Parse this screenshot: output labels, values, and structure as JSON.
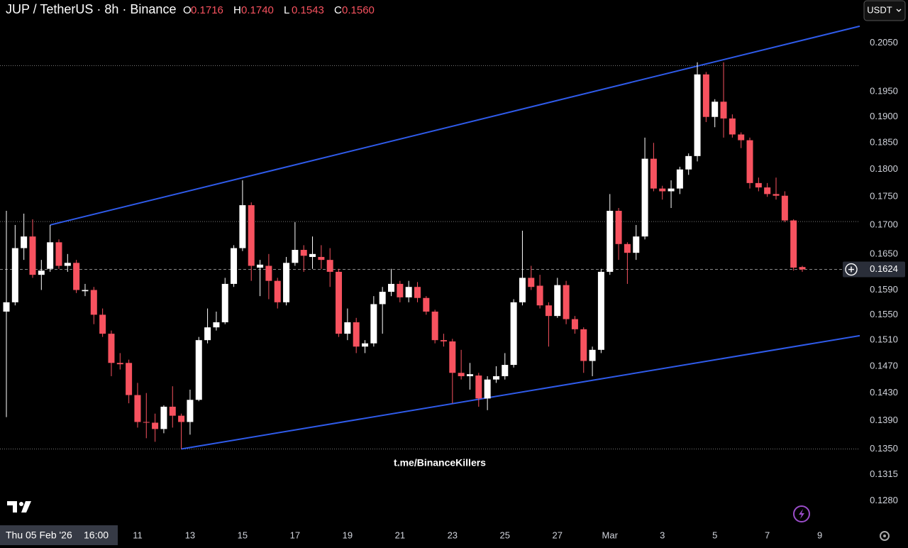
{
  "chart_data": {
    "type": "candlestick",
    "title": "JUP / TetherUS · 8h · Binance",
    "ohlc_legend": [
      {
        "label": "O",
        "value": "0.1716"
      },
      {
        "label": "H",
        "value": "0.1740"
      },
      {
        "label": "L",
        "value": "0.1543"
      },
      {
        "label": "C",
        "value": "0.1560"
      }
    ],
    "currency": "USDT",
    "watermark": "t.me/BinanceKillers",
    "crosshair_date": "Thu 05 Feb '26",
    "crosshair_time": "16:00",
    "log_scale": true,
    "up_color": "#ffffff",
    "down_color": "#f7525f",
    "line_color": "#2f5bea",
    "open": [
      0.1555,
      0.157,
      0.166,
      0.168,
      0.1615,
      0.1625,
      0.167,
      0.163,
      0.1635,
      0.1588,
      0.159,
      0.155,
      0.152,
      0.1475,
      0.1475,
      0.1427,
      0.1388,
      0.1387,
      0.1378,
      0.141,
      0.1397,
      0.1388,
      0.142,
      0.151,
      0.153,
      0.1538,
      0.16,
      0.166,
      0.1735,
      0.1627,
      0.163,
      0.1605,
      0.157,
      0.1635,
      0.1657,
      0.1645,
      0.1645,
      0.164,
      0.162,
      0.152,
      0.1538,
      0.15,
      0.1505,
      0.1567,
      0.1587,
      0.16,
      0.1578,
      0.1595,
      0.1577,
      0.1555,
      0.151,
      0.1508,
      0.146,
      0.1455,
      0.1456,
      0.1422,
      0.145,
      0.1455,
      0.1472,
      0.157,
      0.161,
      0.1597,
      0.1565,
      0.1548,
      0.1598,
      0.1543,
      0.1527,
      0.1478,
      0.1495,
      0.162,
      0.1725,
      0.1667,
      0.1652,
      0.168,
      0.182,
      0.1765,
      0.176,
      0.1765,
      0.18,
      0.1825,
      0.1985,
      0.19,
      0.193,
      0.1897,
      0.1866,
      0.1855,
      0.1775,
      0.1767,
      0.1755,
      0.1752,
      0.1708,
      0.1628
    ],
    "high": [
      0.1725,
      0.17,
      0.172,
      0.171,
      0.164,
      0.17,
      0.1675,
      0.165,
      0.164,
      0.16,
      0.1595,
      0.156,
      0.1525,
      0.149,
      0.148,
      0.1445,
      0.143,
      0.14,
      0.1412,
      0.144,
      0.14,
      0.1435,
      0.1515,
      0.156,
      0.1555,
      0.161,
      0.1665,
      0.178,
      0.174,
      0.164,
      0.165,
      0.161,
      0.1645,
      0.1705,
      0.1665,
      0.168,
      0.1665,
      0.166,
      0.1625,
      0.156,
      0.1545,
      0.151,
      0.158,
      0.1595,
      0.1625,
      0.1605,
      0.1605,
      0.1603,
      0.158,
      0.1558,
      0.152,
      0.1512,
      0.1495,
      0.1475,
      0.146,
      0.1455,
      0.147,
      0.149,
      0.1575,
      0.169,
      0.163,
      0.1615,
      0.157,
      0.161,
      0.1605,
      0.1548,
      0.153,
      0.15,
      0.1625,
      0.1755,
      0.173,
      0.167,
      0.17,
      0.186,
      0.185,
      0.177,
      0.178,
      0.1805,
      0.183,
      0.201,
      0.199,
      0.1935,
      0.201,
      0.1905,
      0.187,
      0.186,
      0.1785,
      0.1775,
      0.1785,
      0.176,
      0.171,
      0.163
    ],
    "low": [
      0.1395,
      0.1565,
      0.164,
      0.161,
      0.159,
      0.162,
      0.1625,
      0.162,
      0.1585,
      0.158,
      0.1535,
      0.1515,
      0.1455,
      0.1465,
      0.1415,
      0.138,
      0.1365,
      0.136,
      0.1372,
      0.138,
      0.135,
      0.137,
      0.1418,
      0.1505,
      0.1525,
      0.1535,
      0.1595,
      0.1655,
      0.1605,
      0.158,
      0.1575,
      0.156,
      0.1565,
      0.163,
      0.162,
      0.1625,
      0.1625,
      0.1595,
      0.1515,
      0.151,
      0.149,
      0.149,
      0.15,
      0.152,
      0.158,
      0.157,
      0.157,
      0.157,
      0.155,
      0.1505,
      0.15,
      0.1415,
      0.145,
      0.1435,
      0.141,
      0.1405,
      0.1445,
      0.145,
      0.1468,
      0.1565,
      0.159,
      0.156,
      0.15,
      0.1545,
      0.1535,
      0.152,
      0.146,
      0.1455,
      0.149,
      0.1615,
      0.164,
      0.16,
      0.164,
      0.1675,
      0.176,
      0.1745,
      0.173,
      0.1755,
      0.179,
      0.1815,
      0.189,
      0.188,
      0.186,
      0.186,
      0.184,
      0.1765,
      0.176,
      0.175,
      0.1745,
      0.1705,
      0.1622,
      0.162
    ],
    "close": [
      0.157,
      0.166,
      0.168,
      0.1615,
      0.1622,
      0.167,
      0.163,
      0.1635,
      0.159,
      0.159,
      0.155,
      0.152,
      0.1475,
      0.1473,
      0.1427,
      0.1388,
      0.1387,
      0.1378,
      0.141,
      0.1397,
      0.1388,
      0.142,
      0.151,
      0.153,
      0.1538,
      0.16,
      0.166,
      0.1735,
      0.163,
      0.1632,
      0.1605,
      0.157,
      0.1635,
      0.1657,
      0.1647,
      0.165,
      0.164,
      0.162,
      0.152,
      0.1538,
      0.15,
      0.1505,
      0.1567,
      0.1587,
      0.16,
      0.1578,
      0.1595,
      0.1577,
      0.1555,
      0.151,
      0.1508,
      0.146,
      0.1455,
      0.1458,
      0.1422,
      0.145,
      0.1455,
      0.1472,
      0.157,
      0.161,
      0.1595,
      0.1565,
      0.1548,
      0.1598,
      0.1543,
      0.1527,
      0.1478,
      0.1495,
      0.162,
      0.1725,
      0.1667,
      0.1652,
      0.168,
      0.182,
      0.1765,
      0.176,
      0.1765,
      0.18,
      0.1825,
      0.1985,
      0.19,
      0.193,
      0.1897,
      0.1866,
      0.1855,
      0.1775,
      0.1767,
      0.1755,
      0.1752,
      0.1708,
      0.1627,
      0.1624
    ],
    "xlim": [
      -0.73,
      97.57
    ],
    "xticks": [
      {
        "value": 15,
        "label": "11"
      },
      {
        "value": 21,
        "label": "13"
      },
      {
        "value": 27,
        "label": "15"
      },
      {
        "value": 33,
        "label": "17"
      },
      {
        "value": 39,
        "label": "19"
      },
      {
        "value": 45,
        "label": "21"
      },
      {
        "value": 51,
        "label": "23"
      },
      {
        "value": 57,
        "label": "25"
      },
      {
        "value": 63,
        "label": "27"
      },
      {
        "value": 69,
        "label": "Mar"
      },
      {
        "value": 75,
        "label": "3"
      },
      {
        "value": 81,
        "label": "5"
      },
      {
        "value": 87,
        "label": "7"
      },
      {
        "value": 93,
        "label": "9"
      }
    ],
    "ylim": [
      0.1248,
      0.2143
    ],
    "yticks": [
      {
        "value": 0.205,
        "label": "0.2050"
      },
      {
        "value": 0.195,
        "label": "0.1950"
      },
      {
        "value": 0.19,
        "label": "0.1900"
      },
      {
        "value": 0.185,
        "label": "0.1850"
      },
      {
        "value": 0.18,
        "label": "0.1800"
      },
      {
        "value": 0.175,
        "label": "0.1750"
      },
      {
        "value": 0.17,
        "label": "0.1700"
      },
      {
        "value": 0.165,
        "label": "0.1650"
      },
      {
        "value": 0.159,
        "label": "0.1590"
      },
      {
        "value": 0.155,
        "label": "0.1550"
      },
      {
        "value": 0.151,
        "label": "0.1510"
      },
      {
        "value": 0.147,
        "label": "0.1470"
      },
      {
        "value": 0.143,
        "label": "0.1430"
      },
      {
        "value": 0.139,
        "label": "0.1390"
      },
      {
        "value": 0.135,
        "label": "0.1350"
      },
      {
        "value": 0.1315,
        "label": "0.1315"
      },
      {
        "value": 0.128,
        "label": "0.1280"
      }
    ],
    "current_price": {
      "value": 0.1624,
      "label": "0.1624"
    },
    "trend_lines": [
      {
        "x": [
          5,
          97.57
        ],
        "y": [
          0.17,
          0.2086
        ]
      },
      {
        "x": [
          20,
          97.57
        ],
        "y": [
          0.135,
          0.1517
        ]
      }
    ],
    "levels": [
      0.2003,
      0.1706,
      0.135
    ]
  }
}
